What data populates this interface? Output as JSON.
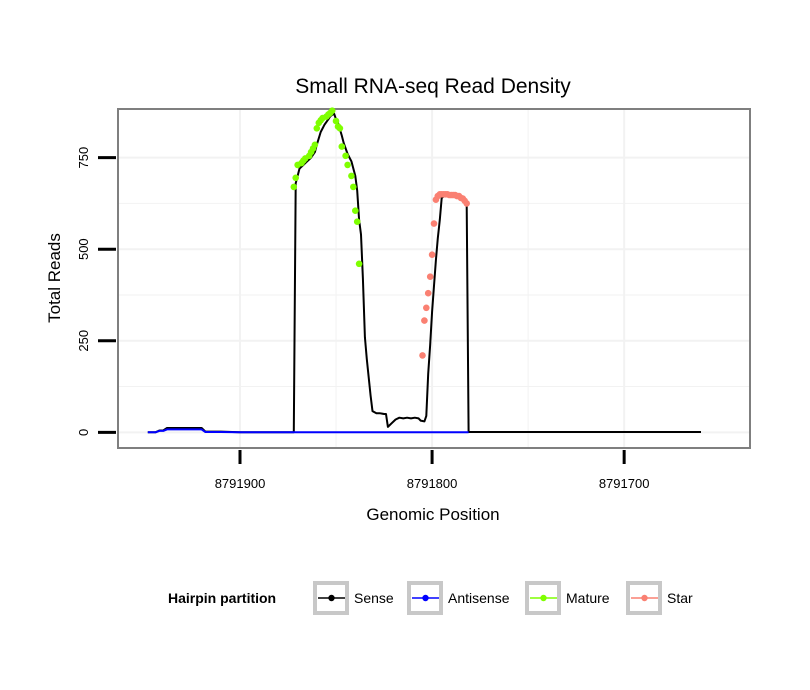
{
  "chart_data": {
    "type": "line",
    "title": "Small RNA-seq Read Density",
    "xlabel": "Genomic Position",
    "ylabel": "Total Reads",
    "xlim": [
      8791963,
      8791635
    ],
    "ylim": [
      -40,
      880
    ],
    "x_reversed": true,
    "x_ticks": [
      8791900,
      8791800,
      8791700
    ],
    "x_tick_labels": [
      "8791900",
      "8791800",
      "8791700"
    ],
    "y_ticks": [
      0,
      250,
      500,
      750
    ],
    "y_tick_labels": [
      "0",
      "250",
      "500",
      "750"
    ],
    "grid": true,
    "legend": {
      "title": "Hairpin partition",
      "position": "bottom",
      "entries": [
        {
          "name": "Sense",
          "color": "#000000"
        },
        {
          "name": "Antisense",
          "color": "#0000ff"
        },
        {
          "name": "Mature",
          "color": "#7fff00"
        },
        {
          "name": "Star",
          "color": "#fa8072"
        }
      ]
    },
    "series": [
      {
        "name": "Sense",
        "color": "#000000",
        "kind": "line",
        "points": [
          [
            8791948,
            0
          ],
          [
            8791944,
            0
          ],
          [
            8791942,
            5
          ],
          [
            8791940,
            5
          ],
          [
            8791938,
            12
          ],
          [
            8791930,
            12
          ],
          [
            8791920,
            12
          ],
          [
            8791918,
            2
          ],
          [
            8791910,
            2
          ],
          [
            8791900,
            0
          ],
          [
            8791872,
            0
          ],
          [
            8791871,
            680
          ],
          [
            8791869,
            720
          ],
          [
            8791867,
            730
          ],
          [
            8791865,
            740
          ],
          [
            8791863,
            750
          ],
          [
            8791861,
            765
          ],
          [
            8791860,
            785
          ],
          [
            8791858,
            820
          ],
          [
            8791856,
            840
          ],
          [
            8791854,
            855
          ],
          [
            8791853,
            863
          ],
          [
            8791851,
            870
          ],
          [
            8791850,
            855
          ],
          [
            8791849,
            845
          ],
          [
            8791847,
            810
          ],
          [
            8791846,
            790
          ],
          [
            8791844,
            760
          ],
          [
            8791842,
            740
          ],
          [
            8791840,
            700
          ],
          [
            8791839,
            660
          ],
          [
            8791838,
            580
          ],
          [
            8791837,
            540
          ],
          [
            8791836,
            420
          ],
          [
            8791835,
            260
          ],
          [
            8791834,
            200
          ],
          [
            8791832,
            100
          ],
          [
            8791831,
            58
          ],
          [
            8791829,
            52
          ],
          [
            8791827,
            52
          ],
          [
            8791825,
            50
          ],
          [
            8791824,
            50
          ],
          [
            8791823,
            15
          ],
          [
            8791821,
            25
          ],
          [
            8791819,
            35
          ],
          [
            8791817,
            40
          ],
          [
            8791815,
            38
          ],
          [
            8791813,
            40
          ],
          [
            8791811,
            38
          ],
          [
            8791809,
            40
          ],
          [
            8791807,
            38
          ],
          [
            8791806,
            32
          ],
          [
            8791804,
            30
          ],
          [
            8791803,
            45
          ],
          [
            8791802,
            160
          ],
          [
            8791801,
            240
          ],
          [
            8791800,
            330
          ],
          [
            8791799,
            400
          ],
          [
            8791798,
            470
          ],
          [
            8791797,
            530
          ],
          [
            8791796,
            580
          ],
          [
            8791795,
            640
          ],
          [
            8791793,
            648
          ],
          [
            8791791,
            648
          ],
          [
            8791789,
            645
          ],
          [
            8791787,
            645
          ],
          [
            8791785,
            640
          ],
          [
            8791784,
            635
          ],
          [
            8791783,
            630
          ],
          [
            8791782,
            620
          ],
          [
            8791781,
            1
          ],
          [
            8791770,
            1
          ],
          [
            8791750,
            1
          ],
          [
            8791700,
            1
          ],
          [
            8791660,
            1
          ]
        ]
      },
      {
        "name": "Antisense",
        "color": "#0000ff",
        "kind": "line",
        "points": [
          [
            8791948,
            0
          ],
          [
            8791944,
            0
          ],
          [
            8791942,
            4
          ],
          [
            8791940,
            4
          ],
          [
            8791938,
            8
          ],
          [
            8791930,
            8
          ],
          [
            8791920,
            8
          ],
          [
            8791918,
            1
          ],
          [
            8791910,
            1
          ],
          [
            8791900,
            0
          ],
          [
            8791872,
            0
          ],
          [
            8791850,
            0
          ],
          [
            8791820,
            0
          ],
          [
            8791800,
            0
          ],
          [
            8791781,
            0
          ]
        ]
      },
      {
        "name": "Mature",
        "color": "#7fff00",
        "kind": "points",
        "points": [
          [
            8791872,
            670
          ],
          [
            8791871,
            695
          ],
          [
            8791870,
            730
          ],
          [
            8791868,
            735
          ],
          [
            8791867,
            742
          ],
          [
            8791866,
            748
          ],
          [
            8791864,
            755
          ],
          [
            8791863,
            765
          ],
          [
            8791862,
            775
          ],
          [
            8791861,
            785
          ],
          [
            8791860,
            830
          ],
          [
            8791859,
            845
          ],
          [
            8791858,
            852
          ],
          [
            8791857,
            858
          ],
          [
            8791855,
            862
          ],
          [
            8791854,
            868
          ],
          [
            8791853,
            872
          ],
          [
            8791852,
            878
          ],
          [
            8791850,
            850
          ],
          [
            8791849,
            835
          ],
          [
            8791848,
            830
          ],
          [
            8791847,
            780
          ],
          [
            8791845,
            755
          ],
          [
            8791844,
            730
          ],
          [
            8791842,
            700
          ],
          [
            8791841,
            670
          ],
          [
            8791840,
            605
          ],
          [
            8791839,
            575
          ],
          [
            8791838,
            460
          ]
        ]
      },
      {
        "name": "Star",
        "color": "#fa8072",
        "kind": "points",
        "points": [
          [
            8791805,
            210
          ],
          [
            8791804,
            305
          ],
          [
            8791803,
            340
          ],
          [
            8791802,
            380
          ],
          [
            8791801,
            425
          ],
          [
            8791800,
            485
          ],
          [
            8791799,
            570
          ],
          [
            8791798,
            635
          ],
          [
            8791797,
            645
          ],
          [
            8791796,
            650
          ],
          [
            8791795,
            650
          ],
          [
            8791794,
            650
          ],
          [
            8791793,
            650
          ],
          [
            8791792,
            650
          ],
          [
            8791791,
            648
          ],
          [
            8791790,
            648
          ],
          [
            8791789,
            648
          ],
          [
            8791788,
            648
          ],
          [
            8791787,
            645
          ],
          [
            8791786,
            645
          ],
          [
            8791785,
            640
          ],
          [
            8791784,
            638
          ],
          [
            8791783,
            632
          ],
          [
            8791782,
            625
          ]
        ]
      }
    ]
  }
}
